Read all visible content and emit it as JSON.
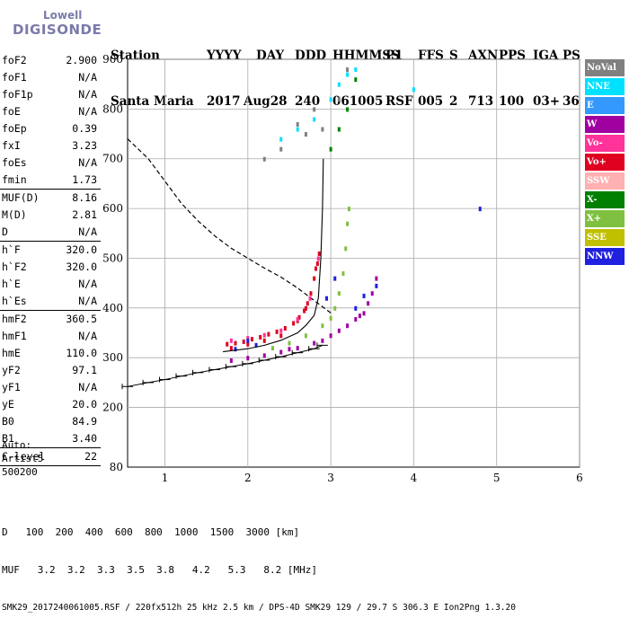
{
  "logo": {
    "line1": "Lowell",
    "line2": "DIGISONDE"
  },
  "header": {
    "labels": [
      "Station",
      "YYYY",
      "DAY",
      "DDD",
      "HHMMSS",
      "P1",
      "FFS",
      "S",
      "AXN",
      "PPS",
      "IGA",
      "PS"
    ],
    "values": [
      "Santa Maria",
      "2017",
      "Aug28",
      "240",
      "061005",
      "RSF",
      "005",
      "2",
      "713",
      "100",
      "03+",
      "36"
    ]
  },
  "params": [
    {
      "label": "foF2",
      "value": "2.900"
    },
    {
      "label": "foF1",
      "value": "N/A"
    },
    {
      "label": "foF1p",
      "value": "N/A"
    },
    {
      "label": "foE",
      "value": "N/A"
    },
    {
      "label": "foEp",
      "value": "0.39"
    },
    {
      "label": "fxI",
      "value": "3.23"
    },
    {
      "label": "foEs",
      "value": "N/A"
    },
    {
      "label": "fmin",
      "value": "1.73",
      "sep": true
    },
    {
      "label": "MUF(D)",
      "value": "8.16"
    },
    {
      "label": "M(D)",
      "value": "2.81"
    },
    {
      "label": "D",
      "value": "N/A",
      "sep": true
    },
    {
      "label": "h`F",
      "value": "320.0"
    },
    {
      "label": "h`F2",
      "value": "320.0"
    },
    {
      "label": "h`E",
      "value": "N/A"
    },
    {
      "label": "h`Es",
      "value": "N/A",
      "sep": true
    },
    {
      "label": "hmF2",
      "value": "360.5"
    },
    {
      "label": "hmF1",
      "value": "N/A"
    },
    {
      "label": "hmE",
      "value": "110.0"
    },
    {
      "label": "yF2",
      "value": "97.1"
    },
    {
      "label": "yF1",
      "value": "N/A"
    },
    {
      "label": "yE",
      "value": "20.0"
    },
    {
      "label": "B0",
      "value": "84.9"
    },
    {
      "label": "B1",
      "value": "3.40",
      "sep": true
    },
    {
      "label": "C-level",
      "value": "22",
      "sep": true
    }
  ],
  "auto": {
    "line1": "Auto:",
    "line2": "Artist5",
    "line3": "500200"
  },
  "bottom": {
    "d_label": "D",
    "d_values": [
      "100",
      "200",
      "400",
      "600",
      "800",
      "1000",
      "1500",
      "3000"
    ],
    "d_unit": "[km]",
    "muf_label": "MUF",
    "muf_values": [
      "3.2",
      "3.2",
      "3.3",
      "3.5",
      "3.8",
      "4.2",
      "5.3",
      "8.2"
    ],
    "muf_unit": "[MHz]",
    "footer": "SMK29_2017240061005.RSF / 220fx512h 25 kHz 2.5 km / DPS-4D SMK29 129 / 29.7 S 306.3 E Ion2Png 1.3.20"
  },
  "legend": [
    {
      "label": "NoVal",
      "color": "#808080"
    },
    {
      "label": "NNE",
      "color": "#00e0ff"
    },
    {
      "label": "E",
      "color": "#3399ff"
    },
    {
      "label": "W",
      "color": "#a000a0"
    },
    {
      "label": "Vo-",
      "color": "#ff3399"
    },
    {
      "label": "Vo+",
      "color": "#e00020"
    },
    {
      "label": "SSW",
      "color": "#ffb0b0"
    },
    {
      "label": "X-",
      "color": "#008000"
    },
    {
      "label": "X+",
      "color": "#80c040"
    },
    {
      "label": "SSE",
      "color": "#c0c000"
    },
    {
      "label": "NNW",
      "color": "#2020e0"
    }
  ],
  "chart_data": {
    "type": "scatter",
    "x_ticks": [
      1,
      2,
      3,
      4,
      5,
      6
    ],
    "y_ticks": [
      200,
      300,
      400,
      500,
      600,
      700,
      800,
      900
    ],
    "xlim": [
      0.55,
      6.0
    ],
    "ylim": [
      80,
      900
    ],
    "grid": true,
    "legend_placement": "right",
    "series": [
      {
        "color": "#e00020",
        "points": [
          [
            1.75,
            328
          ],
          [
            1.85,
            330
          ],
          [
            1.95,
            333
          ],
          [
            2.05,
            338
          ],
          [
            2.15,
            342
          ],
          [
            2.25,
            348
          ],
          [
            2.35,
            353
          ],
          [
            2.45,
            360
          ],
          [
            2.55,
            370
          ],
          [
            2.62,
            382
          ],
          [
            2.68,
            395
          ],
          [
            2.72,
            410
          ],
          [
            2.76,
            430
          ],
          [
            2.8,
            460
          ],
          [
            2.84,
            490
          ],
          [
            2.86,
            510
          ],
          [
            1.8,
            320
          ],
          [
            2.0,
            328
          ],
          [
            2.2,
            335
          ],
          [
            2.4,
            345
          ],
          [
            2.6,
            375
          ],
          [
            2.7,
            400
          ],
          [
            2.82,
            480
          ]
        ]
      },
      {
        "color": "#ff3399",
        "points": [
          [
            1.8,
            335
          ],
          [
            2.0,
            340
          ],
          [
            2.2,
            346
          ],
          [
            2.4,
            355
          ],
          [
            2.6,
            378
          ],
          [
            2.75,
            420
          ],
          [
            2.85,
            500
          ]
        ]
      },
      {
        "color": "#a000a0",
        "points": [
          [
            1.8,
            295
          ],
          [
            2.0,
            300
          ],
          [
            2.2,
            305
          ],
          [
            2.4,
            312
          ],
          [
            2.6,
            320
          ],
          [
            2.8,
            330
          ],
          [
            3.0,
            345
          ],
          [
            3.1,
            355
          ],
          [
            3.2,
            365
          ],
          [
            3.3,
            378
          ],
          [
            3.4,
            390
          ],
          [
            3.45,
            410
          ],
          [
            3.5,
            430
          ],
          [
            3.55,
            460
          ],
          [
            2.5,
            318
          ],
          [
            2.9,
            335
          ],
          [
            3.35,
            385
          ]
        ]
      },
      {
        "color": "#80c040",
        "points": [
          [
            2.3,
            320
          ],
          [
            2.5,
            330
          ],
          [
            2.7,
            345
          ],
          [
            2.9,
            365
          ],
          [
            3.0,
            380
          ],
          [
            3.05,
            400
          ],
          [
            3.1,
            430
          ],
          [
            3.15,
            470
          ],
          [
            3.18,
            520
          ],
          [
            3.2,
            570
          ],
          [
            3.22,
            600
          ]
        ]
      },
      {
        "color": "#2020e0",
        "points": [
          [
            1.85,
            318
          ],
          [
            2.1,
            326
          ],
          [
            2.95,
            420
          ],
          [
            3.05,
            460
          ],
          [
            3.3,
            400
          ],
          [
            3.4,
            425
          ],
          [
            4.8,
            600
          ],
          [
            3.55,
            445
          ],
          [
            2.0,
            335
          ]
        ]
      },
      {
        "color": "#00e0ff",
        "points": [
          [
            2.4,
            740
          ],
          [
            2.6,
            760
          ],
          [
            2.8,
            780
          ],
          [
            3.0,
            820
          ],
          [
            3.1,
            850
          ],
          [
            3.2,
            870
          ],
          [
            3.3,
            880
          ],
          [
            4.0,
            840
          ]
        ]
      },
      {
        "color": "#008000",
        "points": [
          [
            3.0,
            720
          ],
          [
            3.1,
            760
          ],
          [
            3.2,
            800
          ],
          [
            3.3,
            860
          ]
        ]
      },
      {
        "color": "#808080",
        "points": [
          [
            2.2,
            700
          ],
          [
            2.4,
            720
          ],
          [
            2.6,
            770
          ],
          [
            2.8,
            800
          ],
          [
            2.9,
            760
          ],
          [
            3.1,
            820
          ],
          [
            3.2,
            880
          ],
          [
            2.7,
            750
          ]
        ]
      }
    ],
    "trace_curve": [
      [
        0.55,
        242
      ],
      [
        0.8,
        250
      ],
      [
        1.0,
        256
      ],
      [
        1.2,
        263
      ],
      [
        1.4,
        270
      ],
      [
        1.6,
        276
      ],
      [
        1.8,
        282
      ],
      [
        2.0,
        288
      ],
      [
        2.2,
        295
      ],
      [
        2.4,
        302
      ],
      [
        2.6,
        310
      ],
      [
        2.8,
        318
      ],
      [
        2.9,
        325
      ]
    ],
    "profile_curve": [
      [
        1.7,
        312
      ],
      [
        2.0,
        318
      ],
      [
        2.2,
        325
      ],
      [
        2.4,
        335
      ],
      [
        2.6,
        350
      ],
      [
        2.7,
        365
      ],
      [
        2.8,
        385
      ],
      [
        2.85,
        420
      ],
      [
        2.88,
        500
      ],
      [
        2.9,
        600
      ],
      [
        2.91,
        700
      ]
    ],
    "muf_curve": [
      [
        0.55,
        740
      ],
      [
        0.8,
        700
      ],
      [
        1.0,
        655
      ],
      [
        1.2,
        610
      ],
      [
        1.4,
        575
      ],
      [
        1.6,
        545
      ],
      [
        1.8,
        520
      ],
      [
        2.0,
        500
      ],
      [
        2.2,
        480
      ],
      [
        2.4,
        462
      ],
      [
        2.6,
        440
      ],
      [
        2.8,
        415
      ],
      [
        3.0,
        390
      ]
    ]
  }
}
